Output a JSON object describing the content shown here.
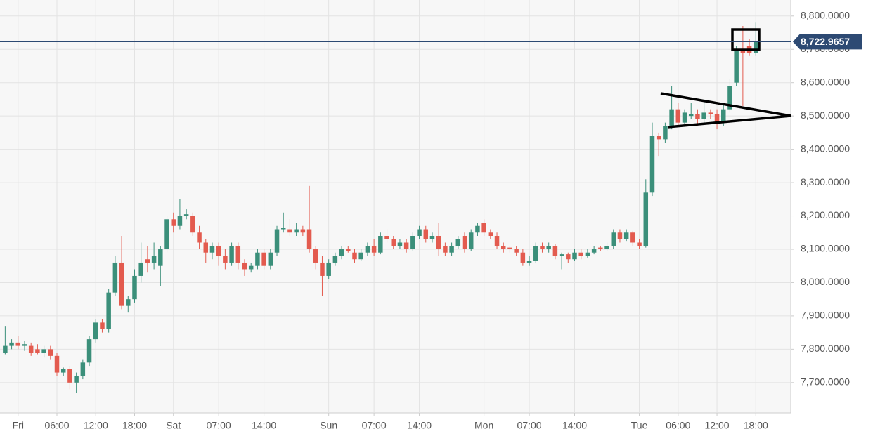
{
  "chart_data": {
    "type": "candlestick",
    "xlim": [
      -2.8,
      119.4
    ],
    "ylim": [
      7609,
      8848
    ],
    "xticks": [
      {
        "value": 0,
        "label": "Fri"
      },
      {
        "value": 6,
        "label": "06:00"
      },
      {
        "value": 12,
        "label": "12:00"
      },
      {
        "value": 18,
        "label": "18:00"
      },
      {
        "value": 24,
        "label": "Sat"
      },
      {
        "value": 31,
        "label": "07:00"
      },
      {
        "value": 38,
        "label": "14:00"
      },
      {
        "value": 48,
        "label": "Sun"
      },
      {
        "value": 55,
        "label": "07:00"
      },
      {
        "value": 62,
        "label": "14:00"
      },
      {
        "value": 72,
        "label": "Mon"
      },
      {
        "value": 79,
        "label": "07:00"
      },
      {
        "value": 86,
        "label": "14:00"
      },
      {
        "value": 96,
        "label": "Tue"
      },
      {
        "value": 102,
        "label": "06:00"
      },
      {
        "value": 108,
        "label": "12:00"
      },
      {
        "value": 114,
        "label": "18:00"
      }
    ],
    "yticks": [
      {
        "value": 7700,
        "label": "7,700.0000"
      },
      {
        "value": 7800,
        "label": "7,800.0000"
      },
      {
        "value": 7900,
        "label": "7,900.0000"
      },
      {
        "value": 8000,
        "label": "8,000.0000"
      },
      {
        "value": 8100,
        "label": "8,100.0000"
      },
      {
        "value": 8200,
        "label": "8,200.0000"
      },
      {
        "value": 8300,
        "label": "8,300.0000"
      },
      {
        "value": 8400,
        "label": "8,400.0000"
      },
      {
        "value": 8500,
        "label": "8,500.0000"
      },
      {
        "value": 8600,
        "label": "8,600.0000"
      },
      {
        "value": 8700,
        "label": "8,700.0000"
      },
      {
        "value": 8800,
        "label": "8,800.0000"
      }
    ],
    "grid": true,
    "up_color": "#3b8f7a",
    "down_color": "#e35b4f",
    "current_price": {
      "value": 8722.9657,
      "label": "8,722.9657"
    },
    "current_price_color": "#2d4a73",
    "x": [
      -2,
      -1,
      0,
      1,
      2,
      3,
      4,
      5,
      6,
      7,
      8,
      9,
      10,
      11,
      12,
      13,
      14,
      15,
      16,
      17,
      18,
      19,
      20,
      21,
      22,
      23,
      24,
      25,
      26,
      27,
      28,
      29,
      30,
      31,
      32,
      33,
      34,
      35,
      36,
      37,
      38,
      39,
      40,
      41,
      42,
      43,
      44,
      45,
      46,
      47,
      48,
      49,
      50,
      51,
      52,
      53,
      54,
      55,
      56,
      57,
      58,
      59,
      60,
      61,
      62,
      63,
      64,
      65,
      66,
      67,
      68,
      69,
      70,
      71,
      72,
      73,
      74,
      75,
      76,
      77,
      78,
      79,
      80,
      81,
      82,
      83,
      84,
      85,
      86,
      87,
      88,
      89,
      90,
      91,
      92,
      93,
      94,
      95,
      96,
      97,
      98,
      99,
      100,
      101,
      102,
      103,
      104,
      105,
      106,
      107,
      108,
      109,
      110,
      111,
      112,
      113,
      114
    ],
    "open": [
      7790,
      7810,
      7820,
      7810,
      7810,
      7800,
      7790,
      7800,
      7780,
      7730,
      7740,
      7700,
      7720,
      7760,
      7830,
      7880,
      7860,
      7970,
      8060,
      7930,
      7950,
      8020,
      8070,
      8060,
      8050,
      8100,
      8190,
      8170,
      8200,
      8200,
      8150,
      8120,
      8090,
      8110,
      8080,
      8060,
      8110,
      8060,
      8040,
      8050,
      8090,
      8050,
      8090,
      8160,
      8160,
      8150,
      8160,
      8160,
      8100,
      8060,
      8020,
      8060,
      8080,
      8100,
      8090,
      8070,
      8090,
      8110,
      8090,
      8140,
      8130,
      8110,
      8120,
      8100,
      8140,
      8160,
      8130,
      8140,
      8110,
      8090,
      8110,
      8140,
      8100,
      8150,
      8180,
      8150,
      8140,
      8110,
      8105,
      8100,
      8090,
      8060,
      8065,
      8110,
      8100,
      8110,
      8080,
      8085,
      8070,
      8090,
      8080,
      8090,
      8105,
      8100,
      8110,
      8150,
      8130,
      8150,
      8120,
      8110,
      8270,
      8440,
      8430,
      8470,
      8520,
      8480,
      8500,
      8505,
      8490,
      8510,
      8505,
      8480,
      8520,
      8600,
      8700,
      8710,
      8690
    ],
    "high": [
      7870,
      7830,
      7840,
      7825,
      7820,
      7815,
      7810,
      7810,
      7790,
      7745,
      7750,
      7730,
      7770,
      7840,
      7890,
      7890,
      7980,
      8080,
      8140,
      7960,
      8040,
      8120,
      8110,
      8120,
      8110,
      8200,
      8210,
      8250,
      8220,
      8210,
      8170,
      8130,
      8120,
      8120,
      8100,
      8120,
      8120,
      8070,
      8060,
      8100,
      8100,
      8100,
      8170,
      8210,
      8190,
      8180,
      8170,
      8290,
      8110,
      8080,
      8070,
      8090,
      8110,
      8110,
      8100,
      8100,
      8120,
      8130,
      8150,
      8160,
      8140,
      8130,
      8130,
      8150,
      8170,
      8170,
      8150,
      8180,
      8120,
      8120,
      8140,
      8150,
      8160,
      8180,
      8190,
      8160,
      8150,
      8120,
      8110,
      8110,
      8100,
      8080,
      8120,
      8120,
      8120,
      8115,
      8090,
      8090,
      8100,
      8100,
      8100,
      8110,
      8110,
      8120,
      8160,
      8160,
      8160,
      8155,
      8130,
      8310,
      8480,
      8450,
      8480,
      8590,
      8540,
      8520,
      8540,
      8520,
      8550,
      8520,
      8520,
      8540,
      8610,
      8710,
      8770,
      8730,
      8780
    ],
    "low": [
      7785,
      7800,
      7800,
      7795,
      7780,
      7785,
      7775,
      7770,
      7720,
      7720,
      7680,
      7670,
      7710,
      7750,
      7820,
      7850,
      7850,
      7960,
      7920,
      7910,
      7940,
      8000,
      8030,
      8040,
      7990,
      8090,
      8150,
      8160,
      8190,
      8140,
      8100,
      8060,
      8070,
      8050,
      8040,
      8050,
      8040,
      8020,
      8030,
      8040,
      8040,
      8040,
      8080,
      8150,
      8140,
      8140,
      8140,
      8090,
      8040,
      7960,
      8010,
      8050,
      8070,
      8090,
      8060,
      8065,
      8080,
      8080,
      8085,
      8120,
      8100,
      8100,
      8090,
      8095,
      8130,
      8120,
      8120,
      8080,
      8080,
      8080,
      8100,
      8090,
      8095,
      8140,
      8140,
      8130,
      8100,
      8090,
      8090,
      8080,
      8050,
      8050,
      8060,
      8090,
      8090,
      8070,
      8040,
      8060,
      8065,
      8070,
      8075,
      8085,
      8095,
      8095,
      8100,
      8120,
      8125,
      8110,
      8100,
      8105,
      8260,
      8380,
      8420,
      8460,
      8470,
      8475,
      8490,
      8470,
      8480,
      8490,
      8460,
      8470,
      8510,
      8590,
      8530,
      8680,
      8680
    ],
    "close": [
      7810,
      7820,
      7810,
      7815,
      7790,
      7790,
      7800,
      7780,
      7730,
      7740,
      7700,
      7720,
      7760,
      7830,
      7880,
      7860,
      7970,
      8060,
      7930,
      7950,
      8020,
      8060,
      8060,
      8080,
      8100,
      8190,
      8170,
      8200,
      8205,
      8150,
      8120,
      8090,
      8110,
      8080,
      8060,
      8110,
      8060,
      8040,
      8050,
      8090,
      8050,
      8090,
      8160,
      8165,
      8150,
      8160,
      8150,
      8100,
      8060,
      8020,
      8060,
      8080,
      8100,
      8095,
      8070,
      8090,
      8110,
      8090,
      8140,
      8130,
      8110,
      8120,
      8100,
      8140,
      8160,
      8130,
      8140,
      8100,
      8090,
      8110,
      8130,
      8100,
      8150,
      8170,
      8150,
      8140,
      8110,
      8100,
      8100,
      8090,
      8060,
      8065,
      8110,
      8100,
      8110,
      8080,
      8085,
      8070,
      8090,
      8080,
      8090,
      8100,
      8100,
      8110,
      8150,
      8130,
      8150,
      8120,
      8110,
      8270,
      8440,
      8430,
      8470,
      8520,
      8480,
      8510,
      8505,
      8490,
      8510,
      8505,
      8480,
      8520,
      8590,
      8700,
      8690,
      8690,
      8723
    ]
  }
}
